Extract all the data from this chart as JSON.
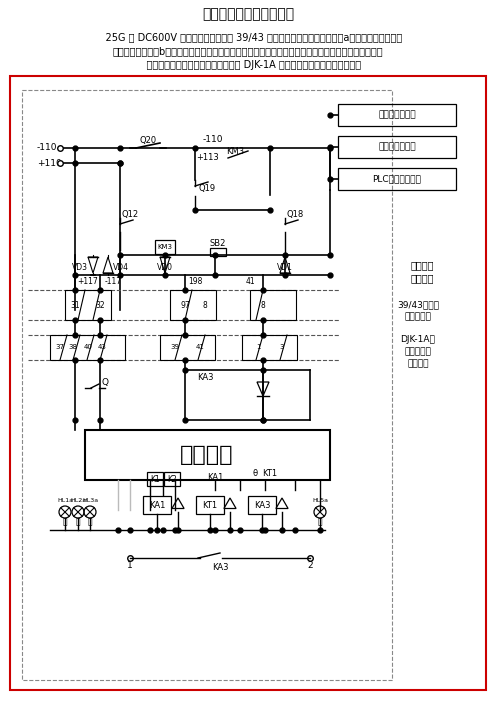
{
  "title": "直供电列车集中供电原理",
  "para1": "    25G 型 DC600V 车辆与机车间连挂的 39/43 芯异型集控线的主要作用是：a向机车供电集中控制",
  "para1b": "器提供控制电源；b为机车与车辆间的供电请求、供电允许信号提供通路，以确保机车向客车安全供电。",
  "para2": "    其原理如下（电气原理图见下图，以 DJK-1A 型机车供电集中控制器为例）：",
  "bg_color": "#ffffff",
  "border_color": "#cc0000",
  "text_color": "#000000"
}
